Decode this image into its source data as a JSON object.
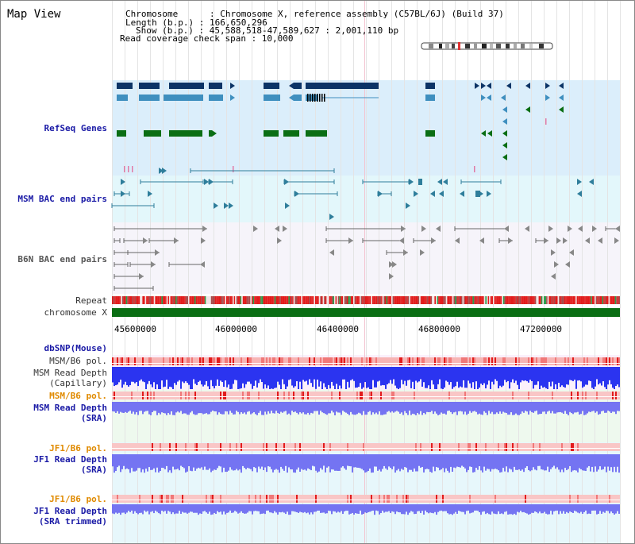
{
  "app": {
    "title": "Map View"
  },
  "info": {
    "chromosome": "Chromosome      : Chromosome X, reference assembly (C57BL/6J) (Build 37)",
    "length": "Length (b.p.) : 166,650,296",
    "show": "Show (b.p.) : 45,588,518-47,589,627 : 2,001,110 bp",
    "coverage": "Read coverage check span : 10,000"
  },
  "tracks": {
    "refseq": "RefSeq Genes",
    "msm_bac": "MSM BAC end pairs",
    "b6n_bac": "B6N BAC end pairs",
    "repeat": "Repeat",
    "chromosome": "chromosome X",
    "dbsnp": "dbSNP(Mouse)",
    "msm_b6_pol_1": "MSM/B6 pol.",
    "msm_depth_cap_1": "MSM Read Depth",
    "msm_depth_cap_2": "(Capillary)",
    "msm_b6_pol_2": "MSM/B6 pol.",
    "msm_depth_sra_1": "MSM Read Depth",
    "msm_depth_sra_2": "(SRA)",
    "jf1_b6_pol_1": "JF1/B6 pol.",
    "jf1_depth_sra_1": "JF1 Read Depth",
    "jf1_depth_sra_2": "(SRA)",
    "jf1_b6_pol_2": "JF1/B6 pol.",
    "jf1_depth_trim_1": "JF1 Read Depth",
    "jf1_depth_trim_2": "(SRA trimmed)"
  },
  "axis": {
    "ticks": [
      "45600000",
      "46000000",
      "46400000",
      "46800000",
      "47200000"
    ]
  },
  "colors": {
    "gene_dark": "#0d3466",
    "gene_mid": "#3f8fbf",
    "gene_green": "#0a6e14",
    "refseq_bg": "#dbeefb",
    "msm_bg": "#e3f7fb",
    "b6n_bg": "#f7f4fa",
    "depth_blue": "#2b34f0",
    "depth_light": "#7474f2",
    "pol_red": "#ef2a2a"
  }
}
